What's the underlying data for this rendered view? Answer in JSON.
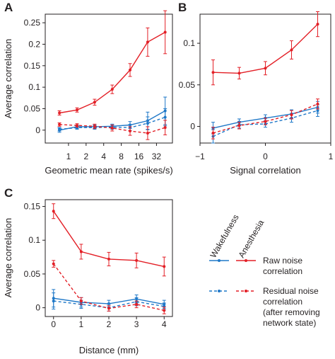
{
  "colors": {
    "raw": "#e31f26",
    "wake": "#1f78c8",
    "axis": "#231f20"
  },
  "legend": {
    "col_wake": "Wakefulness",
    "col_anes": "Anesthesia",
    "raw_lines": [
      "Raw noise",
      "correlation"
    ],
    "resid_lines": [
      "Residual noise",
      "correlation",
      "(after removing",
      "network state)"
    ]
  },
  "chart_data": [
    {
      "panel": "A",
      "type": "line",
      "xlabel": "Geometric mean rate (spikes/s)",
      "ylabel": "Average correlation",
      "xscale": "log",
      "xlim": [
        0.4,
        60
      ],
      "ylim": [
        -0.03,
        0.27
      ],
      "xticks": [
        1,
        2,
        4,
        8,
        16,
        32
      ],
      "xtick_labels": [
        "1",
        "2",
        "4",
        "8",
        "16",
        "32"
      ],
      "yticks": [
        0,
        0.05,
        0.1,
        0.15,
        0.2,
        0.25
      ],
      "ytick_labels": [
        "0",
        "0.05",
        "0.1",
        "0.15",
        "0.2",
        "0.25"
      ],
      "x": [
        0.7,
        1.4,
        2.8,
        5.6,
        11.3,
        22.6,
        45
      ],
      "series": [
        {
          "key": "raw_anes",
          "values": [
            0.04,
            0.047,
            0.065,
            0.095,
            0.14,
            0.205,
            0.228
          ],
          "err": [
            0.005,
            0.005,
            0.007,
            0.01,
            0.015,
            0.033,
            0.05
          ]
        },
        {
          "key": "raw_wake",
          "values": [
            0.0,
            0.008,
            0.008,
            0.009,
            0.012,
            0.022,
            0.045
          ],
          "err": [
            0.005,
            0.004,
            0.004,
            0.005,
            0.008,
            0.02,
            0.032
          ]
        },
        {
          "key": "resid_anes",
          "values": [
            0.013,
            0.011,
            0.009,
            0.005,
            -0.002,
            -0.007,
            0.006
          ],
          "err": [
            0.004,
            0.004,
            0.005,
            0.007,
            0.01,
            0.015,
            0.017
          ]
        },
        {
          "key": "resid_wake",
          "values": [
            0.002,
            0.006,
            0.006,
            0.007,
            0.006,
            0.016,
            0.03
          ],
          "err": [
            0.004,
            0.004,
            0.004,
            0.005,
            0.007,
            0.015,
            0.02
          ]
        }
      ]
    },
    {
      "panel": "B",
      "type": "line",
      "xlabel": "Signal correlation",
      "ylabel": "",
      "xlim": [
        -1,
        1
      ],
      "ylim": [
        -0.02,
        0.135
      ],
      "xticks": [
        -1,
        0,
        1
      ],
      "xtick_labels": [
        "−1",
        "0",
        "1"
      ],
      "yticks": [
        0,
        0.05,
        0.1
      ],
      "ytick_labels": [
        "0",
        "0.05",
        "0.1"
      ],
      "x": [
        -0.8,
        -0.4,
        0.0,
        0.4,
        0.8
      ],
      "series": [
        {
          "key": "raw_anes",
          "values": [
            0.065,
            0.064,
            0.07,
            0.092,
            0.123
          ],
          "err": [
            0.015,
            0.007,
            0.008,
            0.011,
            0.015
          ]
        },
        {
          "key": "raw_wake",
          "values": [
            -0.002,
            0.005,
            0.01,
            0.015,
            0.023
          ],
          "err": [
            0.007,
            0.004,
            0.004,
            0.005,
            0.007
          ]
        },
        {
          "key": "resid_anes",
          "values": [
            -0.008,
            0.001,
            0.006,
            0.014,
            0.027
          ],
          "err": [
            0.007,
            0.004,
            0.004,
            0.005,
            0.006
          ]
        },
        {
          "key": "resid_wake",
          "values": [
            -0.012,
            0.002,
            0.003,
            0.01,
            0.019
          ],
          "err": [
            0.008,
            0.004,
            0.004,
            0.005,
            0.007
          ]
        }
      ]
    },
    {
      "panel": "C",
      "type": "line",
      "xlabel": "Distance (mm)",
      "ylabel": "Average correlation",
      "xlim": [
        -0.3,
        4.3
      ],
      "ylim": [
        -0.013,
        0.16
      ],
      "xticks": [
        0,
        1,
        2,
        3,
        4
      ],
      "xtick_labels": [
        "0",
        "1",
        "2",
        "3",
        "4"
      ],
      "yticks": [
        0,
        0.05,
        0.1,
        0.15
      ],
      "ytick_labels": [
        "0",
        "0.05",
        "0.1",
        "0.15"
      ],
      "x": [
        0,
        1,
        2,
        3,
        4
      ],
      "series": [
        {
          "key": "raw_anes",
          "values": [
            0.143,
            0.083,
            0.072,
            0.07,
            0.061
          ],
          "err": [
            0.011,
            0.011,
            0.01,
            0.011,
            0.014
          ]
        },
        {
          "key": "raw_wake",
          "values": [
            0.014,
            0.008,
            0.006,
            0.013,
            0.005
          ],
          "err": [
            0.013,
            0.007,
            0.005,
            0.006,
            0.006
          ]
        },
        {
          "key": "resid_anes",
          "values": [
            0.065,
            0.01,
            -0.001,
            0.005,
            -0.004
          ],
          "err": [
            0.005,
            0.005,
            0.004,
            0.005,
            0.005
          ]
        },
        {
          "key": "resid_wake",
          "values": [
            0.01,
            0.005,
            0.0,
            0.009,
            0.002
          ],
          "err": [
            0.012,
            0.006,
            0.005,
            0.006,
            0.005
          ]
        }
      ]
    }
  ]
}
